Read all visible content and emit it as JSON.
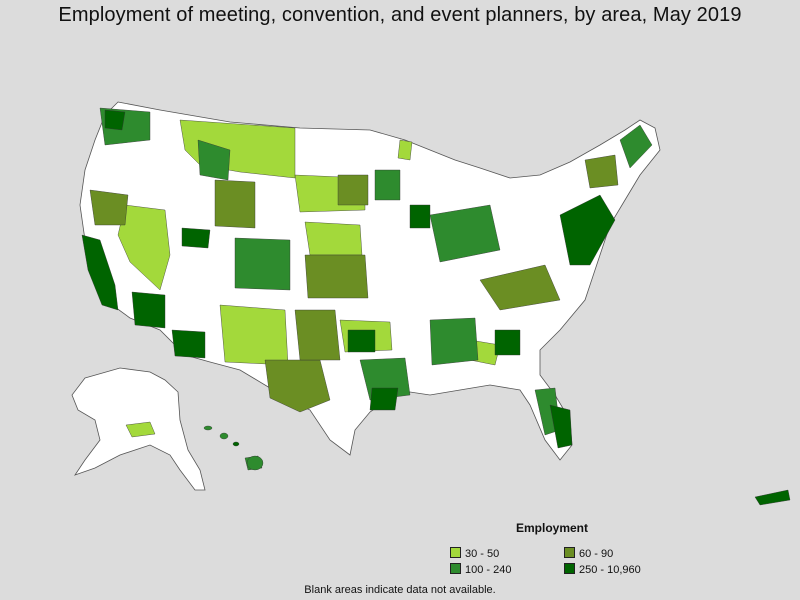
{
  "title": "Employment of meeting, convention, and event planners, by area, May 2019",
  "legend": {
    "title": "Employment",
    "items": [
      {
        "label": "30 - 50",
        "color": "#a3d93b"
      },
      {
        "label": "60 - 90",
        "color": "#6b8e23"
      },
      {
        "label": "100 - 240",
        "color": "#2e8b2e"
      },
      {
        "label": "250 - 10,960",
        "color": "#006400"
      }
    ]
  },
  "no_data_color": "#ffffff",
  "footnote": "Blank areas indicate data not available."
}
